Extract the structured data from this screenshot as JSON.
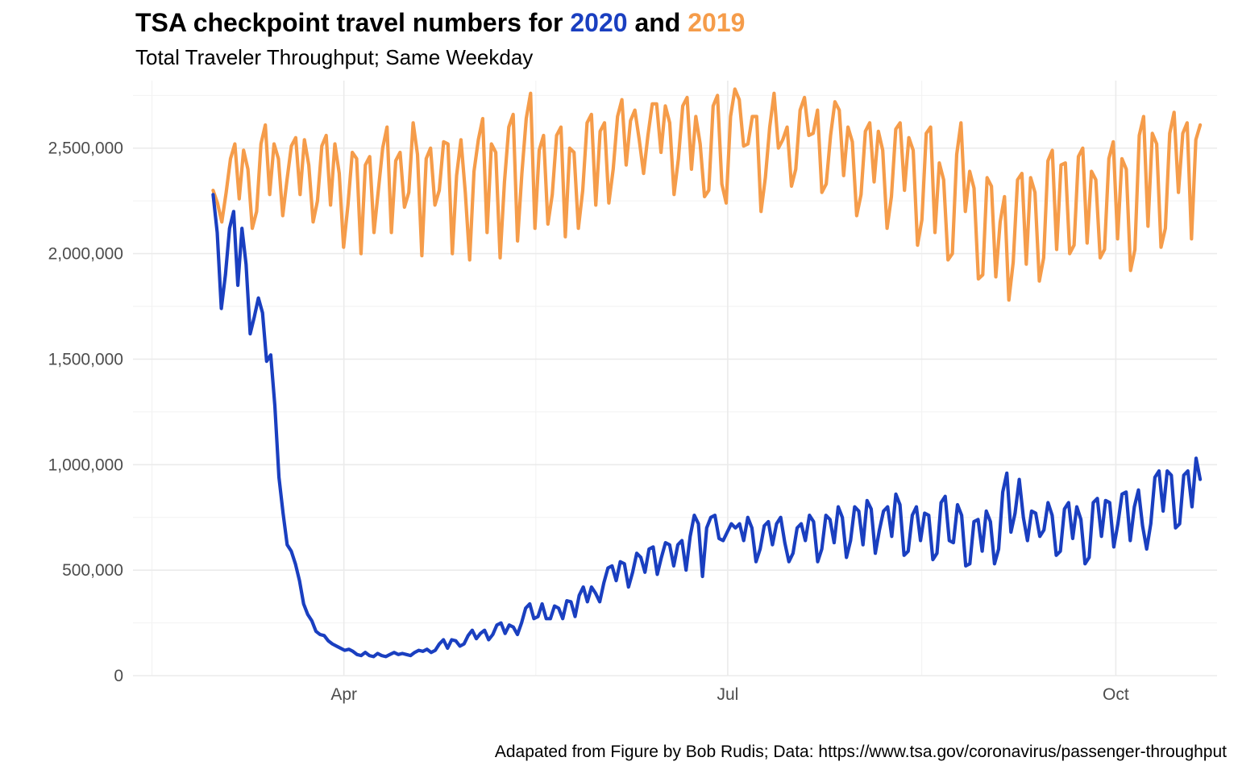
{
  "title": {
    "prefix": "TSA checkpoint travel numbers for ",
    "year_a": "2020",
    "middle": " and ",
    "year_b": "2019"
  },
  "subtitle": "Total Traveler Throughput; Same Weekday",
  "caption": "Adapated from Figure by Bob Rudis; Data: https://www.tsa.gov/coronavirus/passenger-throughput",
  "colors": {
    "2020": "#1a3fc0",
    "2019": "#f59c4a"
  },
  "chart_data": {
    "type": "line",
    "title": "TSA checkpoint travel numbers for 2020 and 2019",
    "subtitle": "Total Traveler Throughput; Same Weekday",
    "xlabel": "",
    "ylabel": "",
    "xlim": [
      "2020-02-11",
      "2020-10-25"
    ],
    "ylim": [
      0,
      2820000
    ],
    "x_ticks": [
      "Apr",
      "Jul",
      "Oct"
    ],
    "x_tick_dates": [
      "2020-04-01",
      "2020-07-01",
      "2020-10-01"
    ],
    "y_ticks": [
      0,
      500000,
      1000000,
      1500000,
      2000000,
      2500000
    ],
    "y_tick_labels": [
      "0",
      "500,000",
      "1,000,000",
      "1,500,000",
      "2,000,000",
      "2,500,000"
    ],
    "grid": true,
    "legend": "none",
    "x_start": "2020-03-01",
    "x_end": "2020-10-21",
    "series": [
      {
        "name": "2020",
        "values": [
          2280000,
          2100000,
          1740000,
          1900000,
          2120000,
          2200000,
          1850000,
          2120000,
          1950000,
          1620000,
          1700000,
          1790000,
          1720000,
          1490000,
          1520000,
          1280000,
          940000,
          770000,
          620000,
          590000,
          530000,
          450000,
          340000,
          290000,
          260000,
          210000,
          195000,
          190000,
          165000,
          150000,
          140000,
          130000,
          120000,
          125000,
          115000,
          100000,
          95000,
          110000,
          95000,
          90000,
          105000,
          95000,
          90000,
          100000,
          110000,
          100000,
          105000,
          100000,
          95000,
          110000,
          120000,
          115000,
          125000,
          110000,
          120000,
          150000,
          170000,
          130000,
          170000,
          165000,
          140000,
          150000,
          190000,
          215000,
          175000,
          200000,
          215000,
          170000,
          195000,
          240000,
          250000,
          200000,
          240000,
          230000,
          195000,
          250000,
          320000,
          340000,
          270000,
          280000,
          340000,
          270000,
          270000,
          330000,
          320000,
          270000,
          355000,
          350000,
          280000,
          380000,
          420000,
          350000,
          420000,
          390000,
          350000,
          440000,
          510000,
          520000,
          450000,
          540000,
          530000,
          420000,
          490000,
          580000,
          560000,
          490000,
          600000,
          610000,
          480000,
          560000,
          630000,
          620000,
          520000,
          620000,
          640000,
          500000,
          660000,
          760000,
          720000,
          470000,
          700000,
          750000,
          760000,
          650000,
          640000,
          680000,
          720000,
          700000,
          720000,
          640000,
          750000,
          700000,
          540000,
          600000,
          710000,
          730000,
          620000,
          720000,
          750000,
          630000,
          540000,
          580000,
          700000,
          720000,
          640000,
          760000,
          730000,
          540000,
          600000,
          760000,
          740000,
          630000,
          800000,
          750000,
          560000,
          640000,
          800000,
          780000,
          620000,
          830000,
          790000,
          580000,
          690000,
          780000,
          800000,
          660000,
          860000,
          810000,
          570000,
          590000,
          760000,
          800000,
          640000,
          770000,
          760000,
          550000,
          580000,
          820000,
          850000,
          640000,
          630000,
          810000,
          760000,
          520000,
          530000,
          730000,
          740000,
          590000,
          780000,
          730000,
          530000,
          600000,
          870000,
          960000,
          680000,
          770000,
          930000,
          750000,
          640000,
          780000,
          770000,
          660000,
          690000,
          820000,
          760000,
          570000,
          590000,
          790000,
          820000,
          650000,
          800000,
          740000,
          530000,
          560000,
          820000,
          840000,
          660000,
          830000,
          820000,
          610000,
          720000,
          860000,
          870000,
          640000,
          800000,
          880000,
          710000,
          600000,
          720000,
          940000,
          970000,
          780000,
          970000,
          950000,
          700000,
          720000,
          950000,
          970000,
          800000,
          1030000,
          930000
        ]
      },
      {
        "name": "2019",
        "values": [
          2300000,
          2240000,
          2150000,
          2290000,
          2450000,
          2520000,
          2260000,
          2490000,
          2400000,
          2120000,
          2200000,
          2520000,
          2610000,
          2280000,
          2520000,
          2450000,
          2180000,
          2350000,
          2510000,
          2550000,
          2280000,
          2540000,
          2420000,
          2150000,
          2250000,
          2510000,
          2560000,
          2230000,
          2520000,
          2380000,
          2030000,
          2230000,
          2480000,
          2450000,
          2000000,
          2420000,
          2460000,
          2100000,
          2300000,
          2500000,
          2600000,
          2100000,
          2440000,
          2480000,
          2220000,
          2290000,
          2620000,
          2470000,
          1990000,
          2450000,
          2500000,
          2230000,
          2300000,
          2530000,
          2520000,
          2000000,
          2370000,
          2540000,
          2290000,
          1970000,
          2390000,
          2540000,
          2640000,
          2100000,
          2520000,
          2480000,
          1980000,
          2340000,
          2600000,
          2660000,
          2060000,
          2380000,
          2640000,
          2760000,
          2120000,
          2490000,
          2560000,
          2140000,
          2280000,
          2560000,
          2600000,
          2080000,
          2500000,
          2480000,
          2120000,
          2300000,
          2620000,
          2660000,
          2230000,
          2580000,
          2620000,
          2240000,
          2400000,
          2650000,
          2730000,
          2420000,
          2630000,
          2680000,
          2540000,
          2380000,
          2560000,
          2710000,
          2710000,
          2480000,
          2700000,
          2620000,
          2280000,
          2450000,
          2700000,
          2740000,
          2400000,
          2650000,
          2520000,
          2270000,
          2300000,
          2700000,
          2750000,
          2330000,
          2240000,
          2650000,
          2780000,
          2730000,
          2510000,
          2520000,
          2650000,
          2650000,
          2200000,
          2360000,
          2600000,
          2760000,
          2500000,
          2540000,
          2600000,
          2320000,
          2400000,
          2680000,
          2740000,
          2560000,
          2570000,
          2680000,
          2290000,
          2330000,
          2560000,
          2720000,
          2680000,
          2370000,
          2600000,
          2530000,
          2180000,
          2280000,
          2580000,
          2620000,
          2340000,
          2580000,
          2490000,
          2120000,
          2270000,
          2590000,
          2620000,
          2300000,
          2550000,
          2490000,
          2040000,
          2160000,
          2570000,
          2600000,
          2100000,
          2430000,
          2350000,
          1970000,
          2000000,
          2470000,
          2620000,
          2200000,
          2390000,
          2310000,
          1880000,
          1900000,
          2360000,
          2320000,
          1890000,
          2150000,
          2270000,
          1780000,
          1960000,
          2350000,
          2380000,
          1950000,
          2360000,
          2290000,
          1870000,
          1980000,
          2440000,
          2490000,
          2020000,
          2420000,
          2430000,
          2000000,
          2040000,
          2460000,
          2500000,
          2050000,
          2390000,
          2350000,
          1980000,
          2020000,
          2450000,
          2530000,
          2070000,
          2450000,
          2400000,
          1920000,
          2020000,
          2560000,
          2650000,
          2130000,
          2570000,
          2520000,
          2030000,
          2120000,
          2570000,
          2670000,
          2290000,
          2570000,
          2620000,
          2070000,
          2540000,
          2610000
        ]
      }
    ]
  }
}
